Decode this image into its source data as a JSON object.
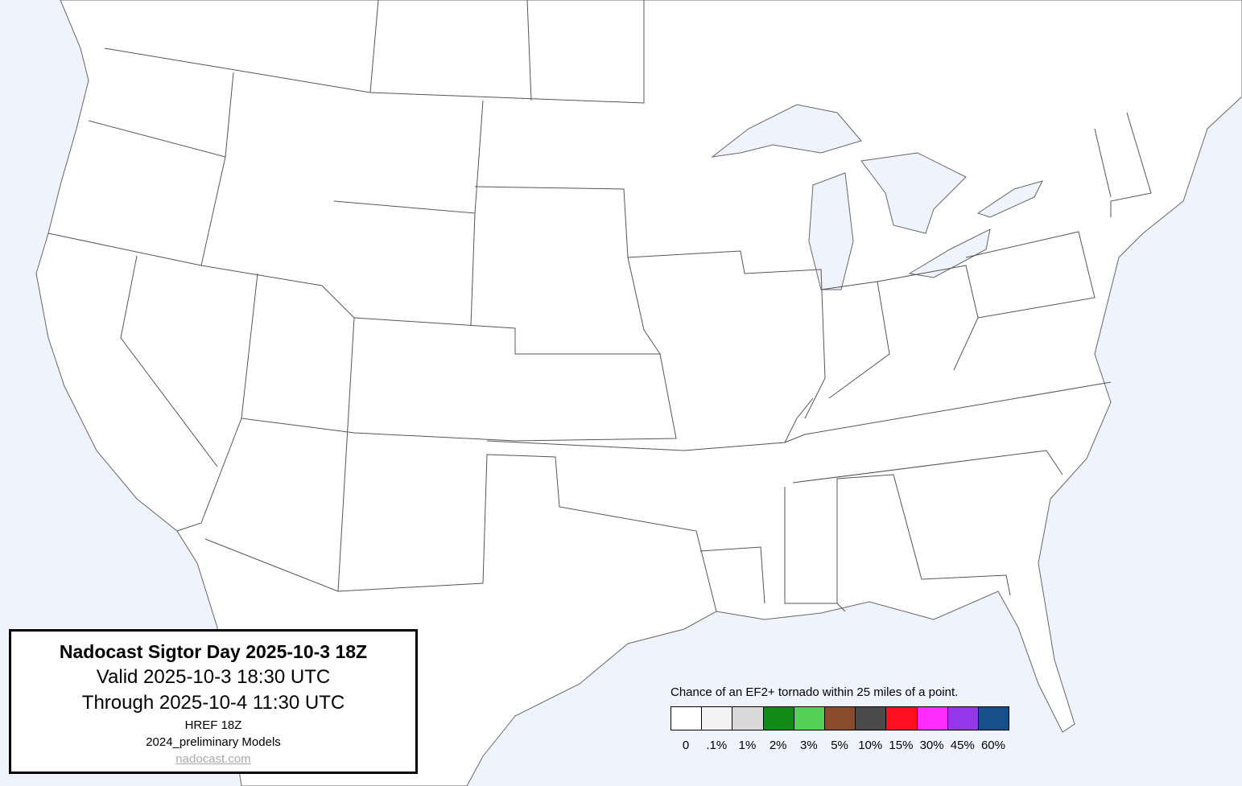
{
  "info": {
    "title": "Nadocast Sigtor Day 2025-10-3 18Z",
    "valid": "Valid 2025-10-3 18:30 UTC",
    "through": "Through 2025-10-4 11:30 UTC",
    "model_run": "HREF 18Z",
    "models": "2024_preliminary Models",
    "site": "nadocast.com"
  },
  "legend": {
    "title": "Chance of an EF2+ tornado within 25 miles of a point.",
    "bins": [
      {
        "label": "0",
        "color": "#ffffff"
      },
      {
        "label": ".1%",
        "color": "#f4f4f4"
      },
      {
        "label": "1%",
        "color": "#d9d9d9"
      },
      {
        "label": "2%",
        "color": "#128a16"
      },
      {
        "label": "3%",
        "color": "#56d158"
      },
      {
        "label": "5%",
        "color": "#8a4a2c"
      },
      {
        "label": "10%",
        "color": "#4a4a4a"
      },
      {
        "label": "15%",
        "color": "#ff1020"
      },
      {
        "label": "30%",
        "color": "#ff2cff"
      },
      {
        "label": "45%",
        "color": "#9338e8"
      },
      {
        "label": "60%",
        "color": "#16508a"
      }
    ]
  },
  "colors": {
    "water": "#eff3fd",
    "land": "#ffffff",
    "border": "#555555"
  }
}
